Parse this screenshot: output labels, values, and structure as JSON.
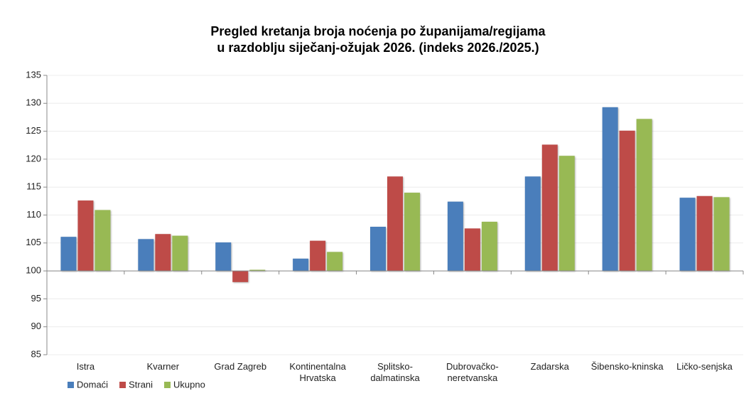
{
  "chart_data": {
    "type": "bar",
    "title": [
      "Pregled kretanja broja noćenja po županijama/regijama",
      "u razdoblju siječanj-ožujak 2026. (indeks 2026./2025.)"
    ],
    "categories": [
      "Istra",
      "Kvarner",
      "Grad Zagreb",
      "Kontinentalna Hrvatska",
      "Splitsko-dalmatinska",
      "Dubrovačko-neretvanska",
      "Zadarska",
      "Šibensko-kninska",
      "Ličko-senjska"
    ],
    "series": [
      {
        "name": "Domaći",
        "color": "#4a7ebb",
        "values": [
          106.1,
          105.7,
          105.1,
          102.2,
          107.9,
          112.4,
          116.9,
          129.3,
          113.1
        ]
      },
      {
        "name": "Strani",
        "color": "#be4b48",
        "values": [
          112.6,
          106.6,
          98.0,
          105.4,
          116.9,
          107.6,
          122.6,
          125.1,
          113.4
        ]
      },
      {
        "name": "Ukupno",
        "color": "#98b954",
        "values": [
          110.9,
          106.3,
          100.2,
          103.4,
          114.0,
          108.8,
          120.6,
          127.2,
          113.2
        ]
      }
    ],
    "ylim": [
      85,
      135
    ],
    "yticks": [
      85,
      90,
      95,
      100,
      105,
      110,
      115,
      120,
      125,
      130,
      135
    ],
    "baseline": 100,
    "grid": true,
    "legend": "bottom-left"
  }
}
